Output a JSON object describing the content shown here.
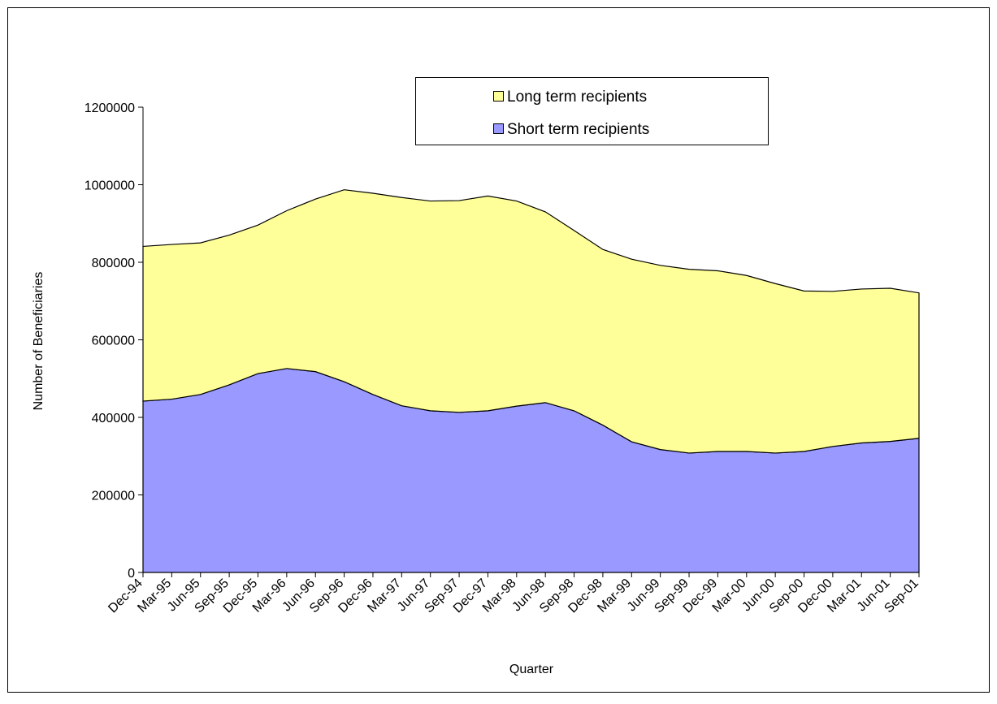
{
  "chart_data": {
    "type": "area",
    "stacked": true,
    "xlabel": "Quarter",
    "ylabel": "Number of Beneficiaries",
    "ylim": [
      0,
      1200000
    ],
    "yticks": [
      0,
      200000,
      400000,
      600000,
      800000,
      1000000,
      1200000
    ],
    "grid": false,
    "legend_position": "top-center",
    "categories": [
      "Dec-94",
      "Mar-95",
      "Jun-95",
      "Sep-95",
      "Dec-95",
      "Mar-96",
      "Jun-96",
      "Sep-96",
      "Dec-96",
      "Mar-97",
      "Jun-97",
      "Sep-97",
      "Dec-97",
      "Mar-98",
      "Jun-98",
      "Sep-98",
      "Dec-98",
      "Mar-99",
      "Jun-99",
      "Sep-99",
      "Dec-99",
      "Mar-00",
      "Jun-00",
      "Sep-00",
      "Dec-00",
      "Mar-01",
      "Jun-01",
      "Sep-01"
    ],
    "series": [
      {
        "name": "Short term recipients",
        "color": "#9999ff",
        "values": [
          442000,
          447000,
          459000,
          484000,
          513000,
          526000,
          518000,
          492000,
          459000,
          430000,
          417000,
          413000,
          417000,
          429000,
          438000,
          417000,
          380000,
          337000,
          317000,
          308000,
          312000,
          312000,
          308000,
          312000,
          325000,
          334000,
          338000,
          346000
        ]
      },
      {
        "name": "Long term recipients",
        "color": "#ffff99",
        "values": [
          399000,
          399000,
          391000,
          386000,
          383000,
          407000,
          445000,
          495000,
          519000,
          537000,
          541000,
          546000,
          554000,
          529000,
          492000,
          465000,
          453000,
          471000,
          475000,
          474000,
          466000,
          454000,
          437000,
          414000,
          400000,
          397000,
          395000,
          375000
        ]
      }
    ]
  }
}
